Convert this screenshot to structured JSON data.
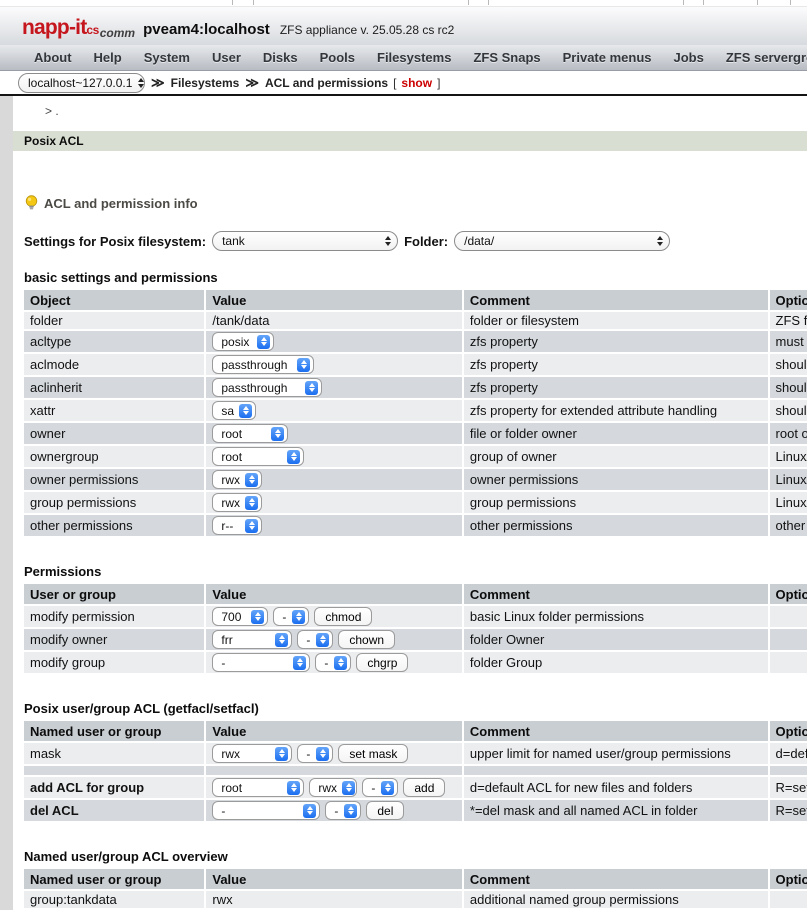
{
  "header": {
    "logo_main": "napp-it",
    "logo_sub": "cs",
    "logo_edition": "comm",
    "hostname": "pveam4:localhost",
    "version": "ZFS appliance v. 25.05.28 cs rc2"
  },
  "nav": {
    "items": [
      "About",
      "Help",
      "System",
      "User",
      "Disks",
      "Pools",
      "Filesystems",
      "ZFS Snaps",
      "Private menus",
      "Jobs",
      "ZFS servergroup"
    ]
  },
  "breadcrumb": {
    "host_select": "localhost~127.0.0.1",
    "sep": "≫",
    "crumb1": "Filesystems",
    "crumb2": "ACL and permissions",
    "bracket_open": "[",
    "show_link": "show",
    "bracket_close": "]"
  },
  "prompt": "> .",
  "section_bar": "Posix ACL",
  "info_link": "ACL and permission info",
  "settings_row": {
    "label": "Settings for Posix filesystem:",
    "fs_select": "tank",
    "folder_label": "Folder:",
    "folder_select": "/data/"
  },
  "colors": {
    "logo_red": "#c5161d",
    "show_red": "#cc0000",
    "green_bar": "#d8dfd2",
    "table_header": "#c9ced3",
    "row_light": "#ecedef",
    "row_dark": "#d5d9dd",
    "stepper_blue": "#1b6ef0"
  },
  "tables": [
    {
      "title": "basic settings and permissions",
      "headers": [
        "Object",
        "Value",
        "Comment",
        "Option"
      ],
      "rows": [
        {
          "label": "folder",
          "value": [
            {
              "t": "text",
              "v": "/tank/data"
            }
          ],
          "comment": "folder or filesystem",
          "option": "ZFS filesys"
        },
        {
          "label": "acltype",
          "value": [
            {
              "t": "select",
              "v": "posix",
              "w": 62
            }
          ],
          "comment": "zfs property",
          "option": "must be po"
        },
        {
          "label": "aclmode",
          "value": [
            {
              "t": "select",
              "v": "passthrough",
              "w": 102
            }
          ],
          "comment": "zfs property",
          "option": "should be "
        },
        {
          "label": "aclinherit",
          "value": [
            {
              "t": "select",
              "v": "passthrough",
              "w": 110
            }
          ],
          "comment": "zfs property",
          "option": "should be "
        },
        {
          "label": "xattr",
          "value": [
            {
              "t": "select",
              "v": "sa",
              "w": 44
            }
          ],
          "comment": "zfs property for extended attribute handling",
          "option": "should be "
        },
        {
          "label": "owner",
          "value": [
            {
              "t": "select",
              "v": "root",
              "w": 76
            }
          ],
          "comment": "file or folder owner",
          "option": "root or SM"
        },
        {
          "label": "ownergroup",
          "value": [
            {
              "t": "select",
              "v": "root",
              "w": 92
            }
          ],
          "comment": "group of owner",
          "option": "Linux/Unix"
        },
        {
          "label": "owner permissions",
          "value": [
            {
              "t": "select",
              "v": "rwx",
              "w": 50
            }
          ],
          "comment": "owner permissions",
          "option": "Linux/Unix"
        },
        {
          "label": "group permissions",
          "value": [
            {
              "t": "select",
              "v": "rwx",
              "w": 50
            }
          ],
          "comment": "group permissions",
          "option": "Linux/Unix"
        },
        {
          "label": "other permissions",
          "value": [
            {
              "t": "select",
              "v": "r--",
              "w": 50
            }
          ],
          "comment": "other permissions",
          "option": "other user"
        }
      ]
    },
    {
      "title": "Permissions",
      "headers": [
        "User or group",
        "Value",
        "Comment",
        "Option"
      ],
      "rows": [
        {
          "label": "modify permission",
          "value": [
            {
              "t": "select",
              "v": "700",
              "w": 56
            },
            {
              "t": "select",
              "v": "-",
              "w": 36
            },
            {
              "t": "button",
              "v": "chmod"
            }
          ],
          "comment": "basic Linux folder permissions",
          "option": ""
        },
        {
          "label": "modify owner",
          "value": [
            {
              "t": "select",
              "v": "frr",
              "w": 80
            },
            {
              "t": "select",
              "v": "-",
              "w": 36
            },
            {
              "t": "button",
              "v": "chown"
            }
          ],
          "comment": "folder Owner",
          "option": ""
        },
        {
          "label": "modify group",
          "value": [
            {
              "t": "select",
              "v": "-",
              "w": 98
            },
            {
              "t": "select",
              "v": "-",
              "w": 36
            },
            {
              "t": "button",
              "v": "chgrp"
            }
          ],
          "comment": "folder Group",
          "option": ""
        }
      ]
    },
    {
      "title": "Posix user/group ACL (getfacl/setfacl)",
      "headers": [
        "Named user or group",
        "Value",
        "Comment",
        "Option"
      ],
      "rows": [
        {
          "label": "mask",
          "value": [
            {
              "t": "select",
              "v": "rwx",
              "w": 80
            },
            {
              "t": "select",
              "v": "-",
              "w": 36
            },
            {
              "t": "button",
              "v": "set mask"
            }
          ],
          "comment": "upper limit for named user/group permissions",
          "option": "d=default,"
        },
        {
          "spacer": true,
          "label": "",
          "value": [],
          "comment": "",
          "option": ""
        },
        {
          "label": "add ACL for group",
          "bold": true,
          "value": [
            {
              "t": "select",
              "v": "root",
              "w": 92
            },
            {
              "t": "select",
              "v": "rwx",
              "w": 48
            },
            {
              "t": "select",
              "v": "-",
              "w": 36
            },
            {
              "t": "button",
              "v": "add"
            }
          ],
          "comment": "d=default ACL for new files and folders",
          "option": "R=set recu"
        },
        {
          "label": "del ACL",
          "bold": true,
          "value": [
            {
              "t": "select",
              "v": "-",
              "w": 108
            },
            {
              "t": "select",
              "v": "-",
              "w": 36
            },
            {
              "t": "button",
              "v": "del"
            }
          ],
          "comment": "*=del mask and all named ACL in folder",
          "option": "R=set recu"
        }
      ]
    },
    {
      "title": "Named user/group ACL overview",
      "headers": [
        "Named user or group",
        "Value",
        "Comment",
        "Option"
      ],
      "rows": [
        {
          "label": "group:tankdata",
          "value": [
            {
              "t": "text",
              "v": "rwx"
            }
          ],
          "comment": "additional named group permissions",
          "option": ""
        }
      ]
    }
  ]
}
